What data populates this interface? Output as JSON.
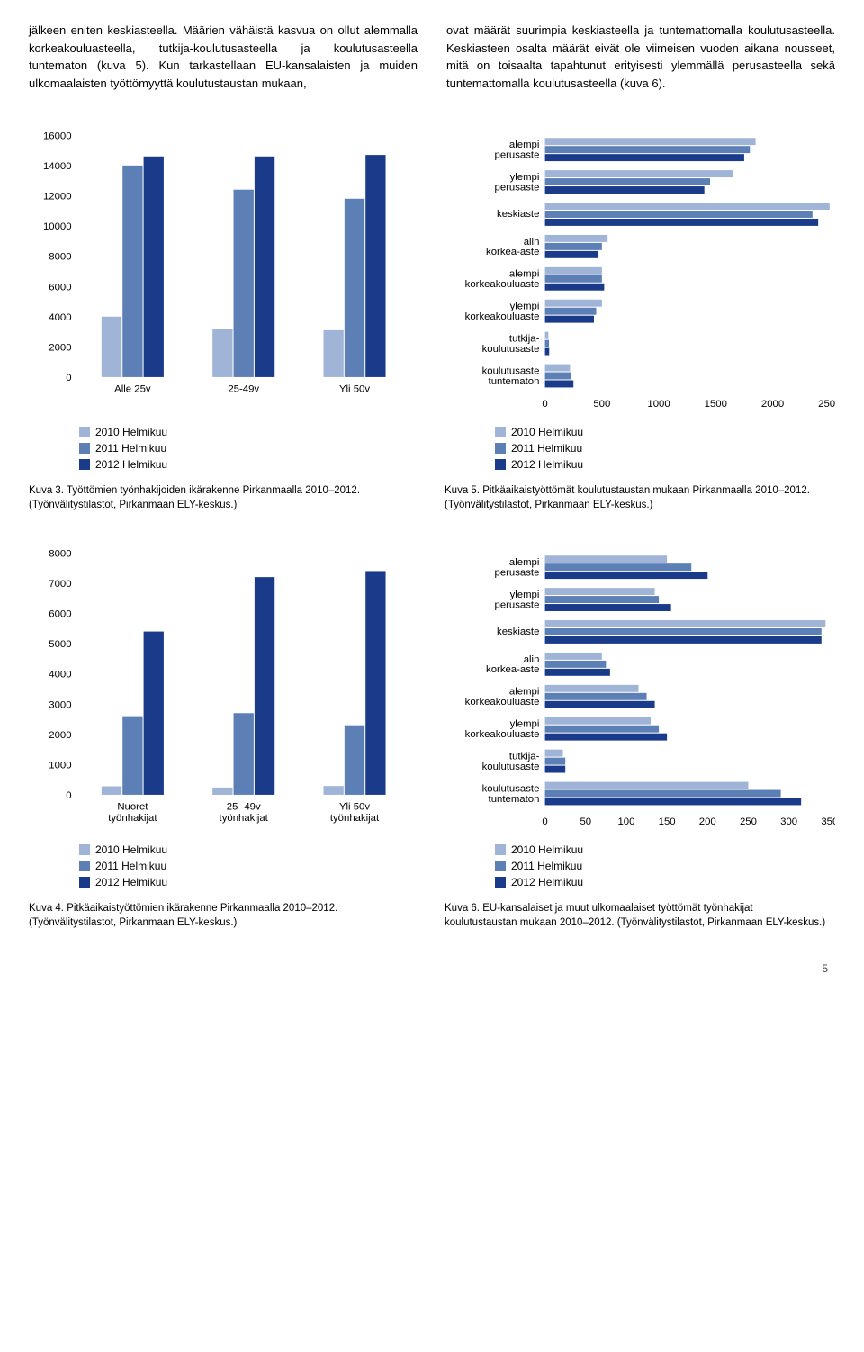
{
  "text": {
    "col1": "jälkeen eniten keskiasteella. Määrien vähäistä kasvua on ollut alemmalla korkeakouluasteella, tutkija-koulutusasteella ja koulutusasteella tuntematon (kuva 5). Kun tarkastellaan EU-kansalaisten ja muiden ulkomaalaisten työttömyyttä koulutustaustan mukaan,",
    "col2": "ovat määrät suurimpia keskiasteella ja tuntemattomalla koulutusasteella. Keskiasteen osalta määrät eivät ole viimeisen vuoden aikana nousseet, mitä on toisaalta tapahtunut erityisesti ylemmällä perusasteella sekä tuntemattomalla koulutusasteella (kuva 6)."
  },
  "colors": {
    "c2010": "#9fb4d6",
    "c2011": "#5c7fb5",
    "c2012": "#1a3b8a",
    "axis": "#444444",
    "tick_text": "#000000"
  },
  "legend": {
    "y2010": "2010 Helmikuu",
    "y2011": "2011 Helmikuu",
    "y2012": "2012 Helmikuu"
  },
  "chart3": {
    "type": "bar",
    "categories": [
      "Alle 25v",
      "25-49v",
      "Yli 50v"
    ],
    "series": [
      {
        "label": "2010 Helmikuu",
        "values": [
          4000,
          3200,
          3100
        ]
      },
      {
        "label": "2011 Helmikuu",
        "values": [
          14000,
          12400,
          11800
        ]
      },
      {
        "label": "2012 Helmikuu",
        "values": [
          14600,
          14600,
          14700
        ]
      }
    ],
    "ylim": [
      0,
      16000
    ],
    "ytick_step": 2000,
    "caption": "Kuva 3. Työttömien työnhakijoiden ikärakenne Pirkanmaalla 2010–2012. (Työnvälitystilastot, Pirkanmaan ELY-keskus.)"
  },
  "chart5": {
    "type": "hbar",
    "categories": [
      "alempi\nperusaste",
      "ylempi\nperusaste",
      "keskiaste",
      "alin\nkorkea-aste",
      "alempi\nkorkeakouluaste",
      "ylempi\nkorkeakouluaste",
      "tutkija-\nkoulutusaste",
      "koulutusaste\ntuntematon"
    ],
    "series": [
      {
        "values": [
          1850,
          1650,
          2500,
          550,
          500,
          500,
          30,
          220
        ]
      },
      {
        "values": [
          1800,
          1450,
          2350,
          500,
          500,
          450,
          35,
          230
        ]
      },
      {
        "values": [
          1750,
          1400,
          2400,
          470,
          520,
          430,
          37,
          250
        ]
      }
    ],
    "xlim": [
      0,
      2500
    ],
    "xtick_step": 500,
    "caption": "Kuva 5. Pitkäaikaistyöttömät koulutustaustan mukaan Pirkanmaalla 2010–2012. (Työnvälitystilastot, Pirkanmaan ELY-keskus.)"
  },
  "chart4": {
    "type": "bar",
    "categories": [
      "Nuoret\ntyönhakijat",
      "25- 49v\ntyönhakijat",
      "Yli 50v\ntyönhakijat"
    ],
    "series": [
      {
        "values": [
          280,
          240,
          290
        ]
      },
      {
        "values": [
          2600,
          2700,
          2300
        ]
      },
      {
        "values": [
          5400,
          7200,
          7400
        ]
      }
    ],
    "ylim": [
      0,
      8000
    ],
    "ytick_step": 1000,
    "caption": "Kuva 4. Pitkäaikaistyöttömien ikärakenne Pirkanmaalla 2010–2012. (Työnvälitystilastot, Pirkanmaan ELY-keskus.)"
  },
  "chart6": {
    "type": "hbar",
    "categories": [
      "alempi\nperusaste",
      "ylempi\nperusaste",
      "keskiaste",
      "alin\nkorkea-aste",
      "alempi\nkorkeakouluaste",
      "ylempi\nkorkeakouluaste",
      "tutkija-\nkoulutusaste",
      "koulutusaste\ntuntematon"
    ],
    "series": [
      {
        "values": [
          150,
          135,
          345,
          70,
          115,
          130,
          22,
          250
        ]
      },
      {
        "values": [
          180,
          140,
          340,
          75,
          125,
          140,
          25,
          290
        ]
      },
      {
        "values": [
          200,
          155,
          340,
          80,
          135,
          150,
          25,
          315
        ]
      }
    ],
    "xlim": [
      0,
      350
    ],
    "xtick_step": 50,
    "caption": "Kuva 6. EU-kansalaiset ja muut ulkomaalaiset työttömät työnhakijat koulutustaustan mukaan 2010–2012. (Työnvälitystilastot, Pirkanmaan ELY-keskus.)"
  },
  "page_number": "5"
}
